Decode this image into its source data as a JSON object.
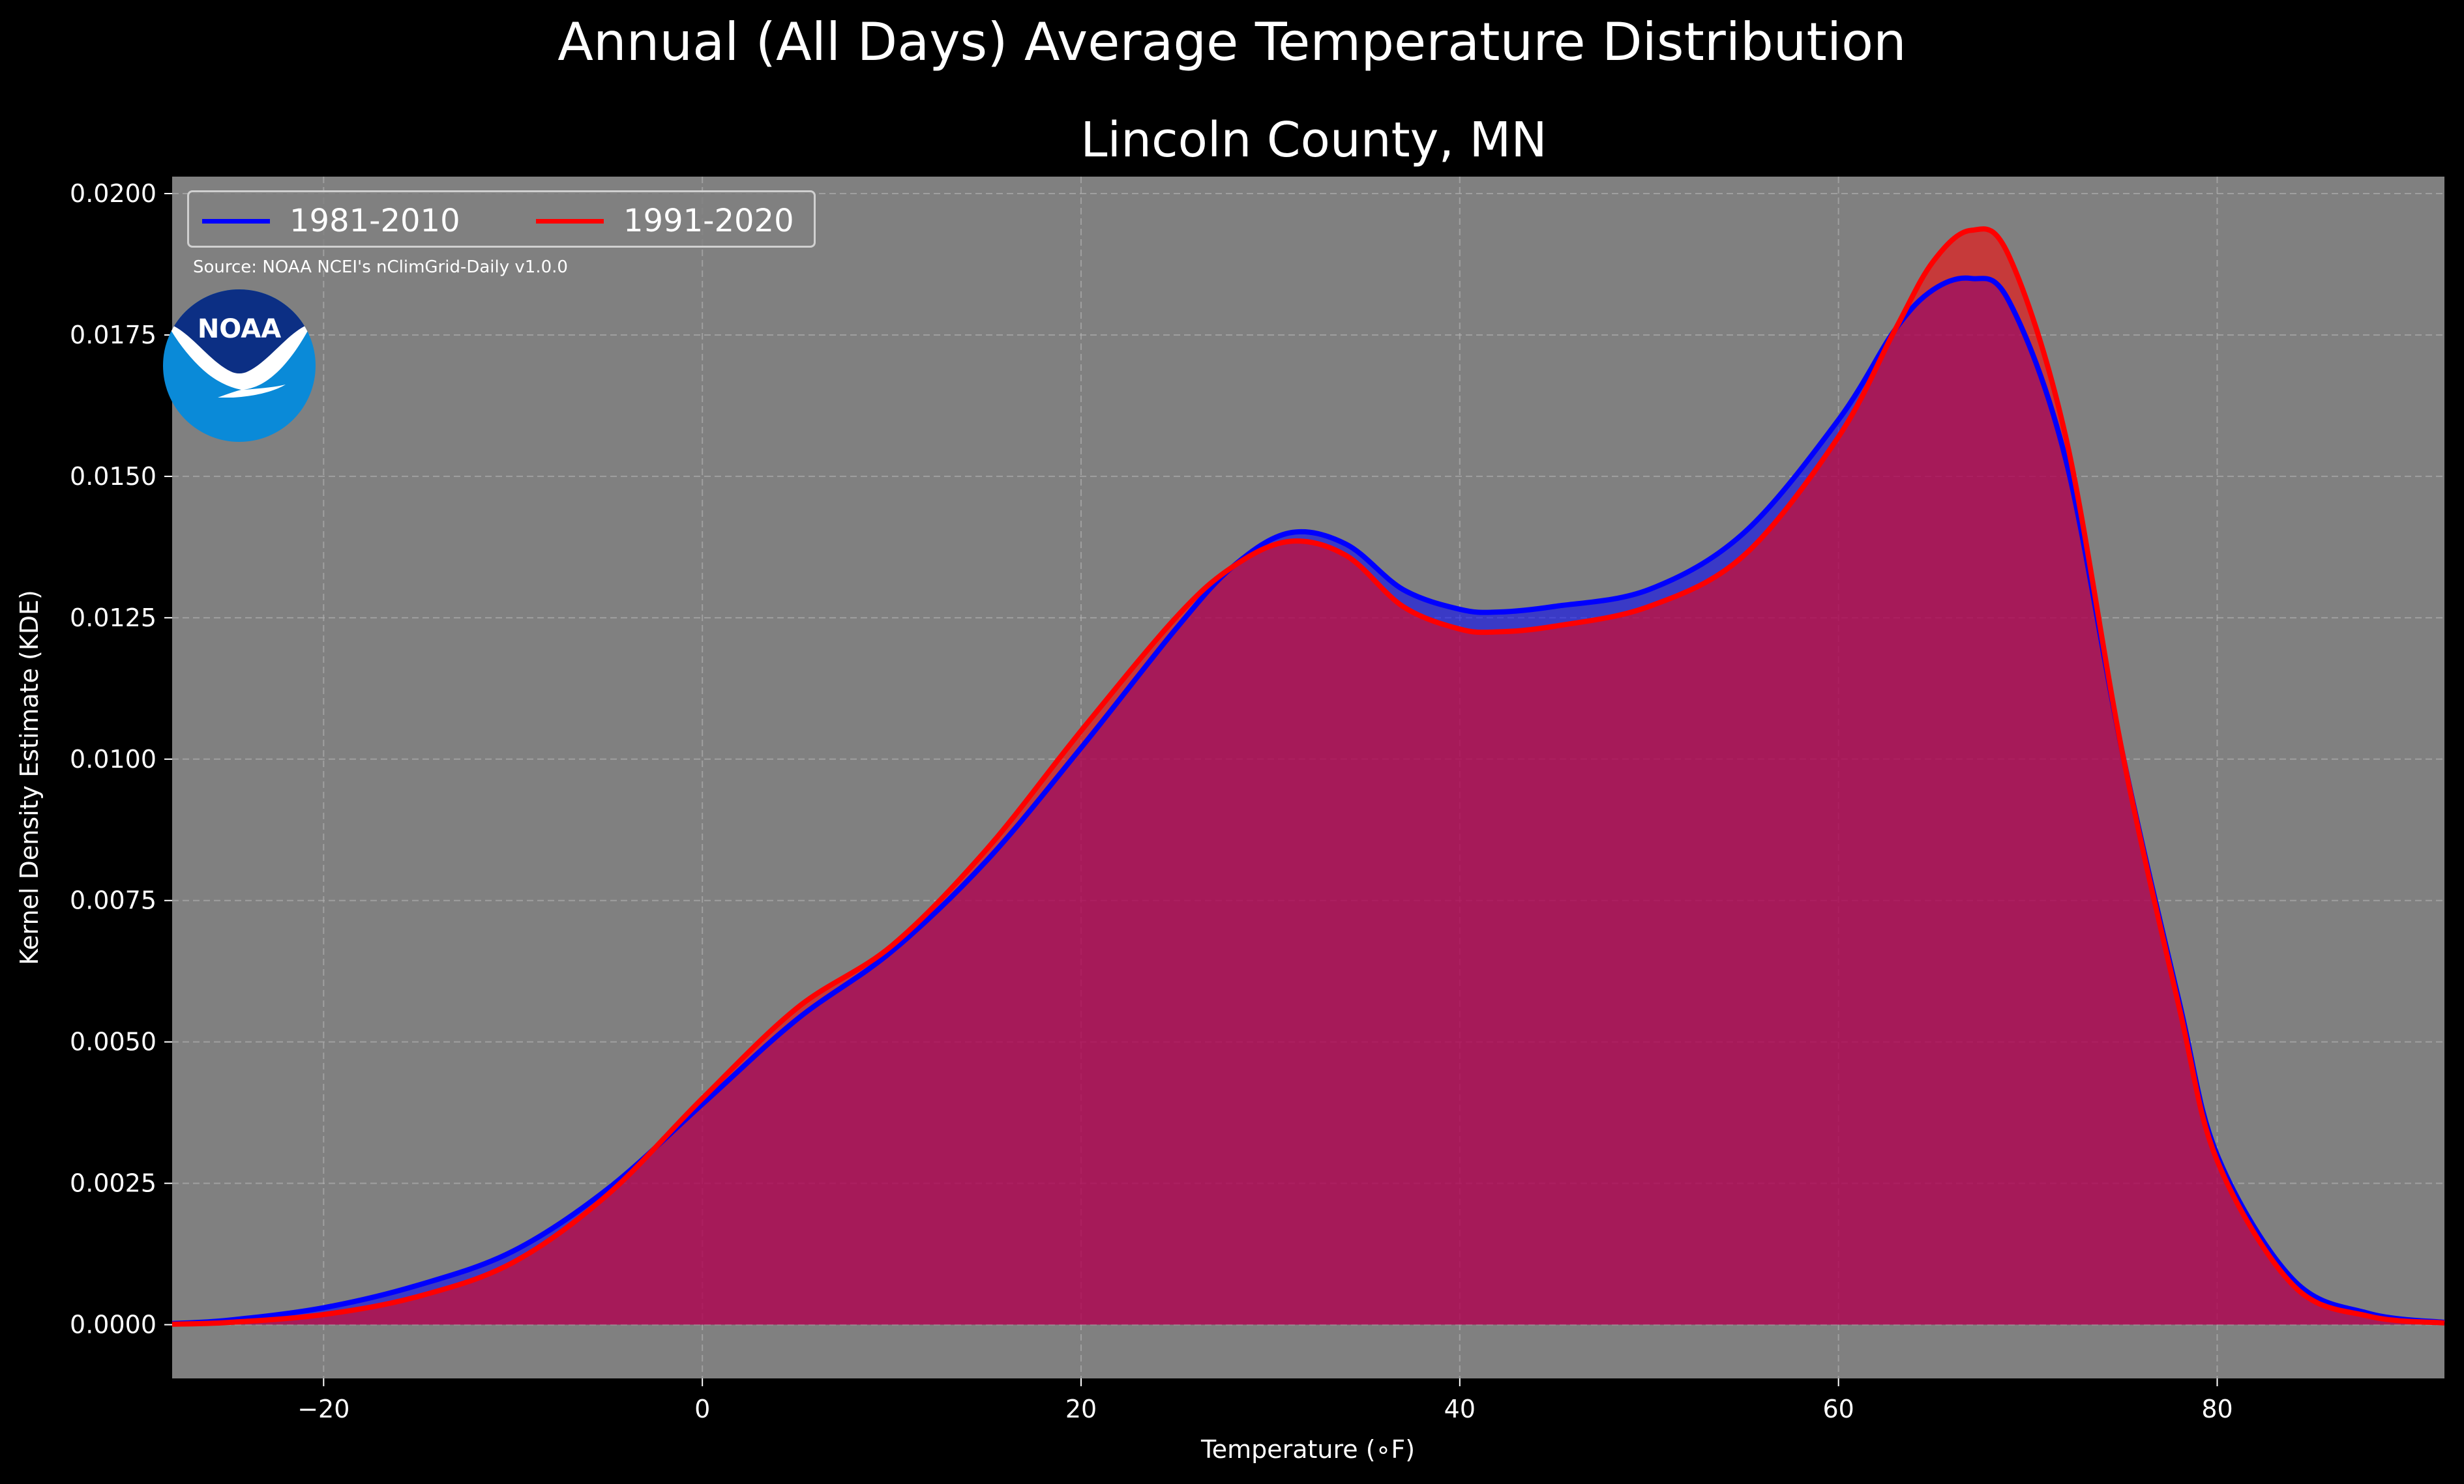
{
  "title": "Annual (All Days) Average Temperature Distribution",
  "subtitle": "Lincoln County, MN",
  "source_note": "Source: NOAA NCEI's nClimGrid-Daily v1.0.0",
  "logo": {
    "icon": "noaa-logo-icon",
    "text": "NOAA"
  },
  "colors": {
    "background": "#000000",
    "plot_bg": "#808080",
    "grid": "#b4b4b4",
    "series_1981_2010": "#0000ff",
    "series_1991_2020": "#ff0000",
    "overlap_fill": "#9c1f5d"
  },
  "chart_data": {
    "type": "area",
    "title": "Annual (All Days) Average Temperature Distribution",
    "subtitle": "Lincoln County, MN",
    "xlabel": "Temperature (∘F)",
    "ylabel": "Kernel Density Estimate (KDE)",
    "xlim": [
      -28,
      92
    ],
    "ylim": [
      -0.00095,
      0.0203
    ],
    "xticks": [
      -20,
      0,
      20,
      40,
      60,
      80
    ],
    "xtick_labels": [
      "−20",
      "0",
      "20",
      "40",
      "60",
      "80"
    ],
    "yticks": [
      0,
      0.0025,
      0.005,
      0.0075,
      0.01,
      0.0125,
      0.015,
      0.0175,
      0.02
    ],
    "ytick_labels": [
      "0.0000",
      "0.0025",
      "0.0050",
      "0.0075",
      "0.0100",
      "0.0125",
      "0.0150",
      "0.0175",
      "0.0200"
    ],
    "grid": true,
    "legend_position": "top-left",
    "x": [
      -28,
      -25,
      -20,
      -15,
      -10,
      -5,
      0,
      5,
      10,
      15,
      20,
      25,
      28,
      31,
      34,
      37,
      40,
      42,
      45,
      50,
      55,
      60,
      63,
      65,
      67,
      69,
      72,
      75,
      78,
      80,
      84,
      88,
      92
    ],
    "series": [
      {
        "name": "1981-2010",
        "color": "#0000ff",
        "values": [
          2e-05,
          8e-05,
          0.0003,
          0.0007,
          0.0013,
          0.0024,
          0.0039,
          0.0054,
          0.0066,
          0.0082,
          0.0102,
          0.0123,
          0.0134,
          0.014,
          0.0138,
          0.013,
          0.01265,
          0.0126,
          0.0127,
          0.013,
          0.014,
          0.016,
          0.0176,
          0.0183,
          0.0185,
          0.0181,
          0.0153,
          0.0101,
          0.0057,
          0.003,
          0.0008,
          0.0002,
          4e-05
        ]
      },
      {
        "name": "1991-2020",
        "color": "#ff0000",
        "values": [
          1e-05,
          4e-05,
          0.00018,
          0.0005,
          0.0011,
          0.0023,
          0.004,
          0.0056,
          0.0067,
          0.0084,
          0.0105,
          0.0125,
          0.0134,
          0.01385,
          0.0136,
          0.0127,
          0.0123,
          0.01225,
          0.01235,
          0.0127,
          0.0136,
          0.0157,
          0.0176,
          0.0188,
          0.01935,
          0.0189,
          0.0157,
          0.0101,
          0.0056,
          0.0029,
          0.0007,
          0.00015,
          3e-05
        ]
      }
    ]
  }
}
